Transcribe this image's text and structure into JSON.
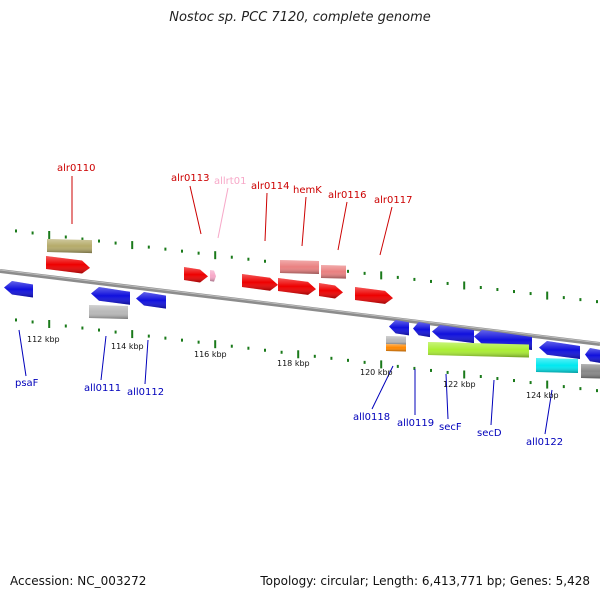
{
  "header": {
    "title": "Nostoc sp. PCC 7120, complete genome"
  },
  "footer": {
    "accession": "Accession: NC_003272",
    "summary": "Topology: circular; Length: 6,413,771 bp; Genes: 5,428"
  },
  "colors": {
    "forward_cds": "#ee0000",
    "forward_light": "#ea8080",
    "reverse_cds": "#1010dd",
    "forward_label": "#cc0000",
    "reverse_label": "#0000bb",
    "rna_light": "#f7a8c8",
    "olive": "#b5ab6a",
    "gray": "#b8b8b8",
    "orange": "#ff8800",
    "lime": "#aaee33",
    "cyan": "#00e8f0",
    "backbone": "#808080",
    "tick": "#1a7a1a"
  },
  "genome_map": {
    "kbp_ticks": [
      "112 kbp",
      "114 kbp",
      "116 kbp",
      "118 kbp",
      "120 kbp",
      "122 kbp",
      "124 kbp"
    ],
    "forward_labels": [
      "alr0110",
      "alr0113",
      "allrt01",
      "alr0114",
      "hemK",
      "alr0116",
      "alr0117"
    ],
    "reverse_labels": [
      "psaF",
      "all0111",
      "all0112",
      "all0118",
      "all0119",
      "secF",
      "secD",
      "all0122"
    ]
  }
}
